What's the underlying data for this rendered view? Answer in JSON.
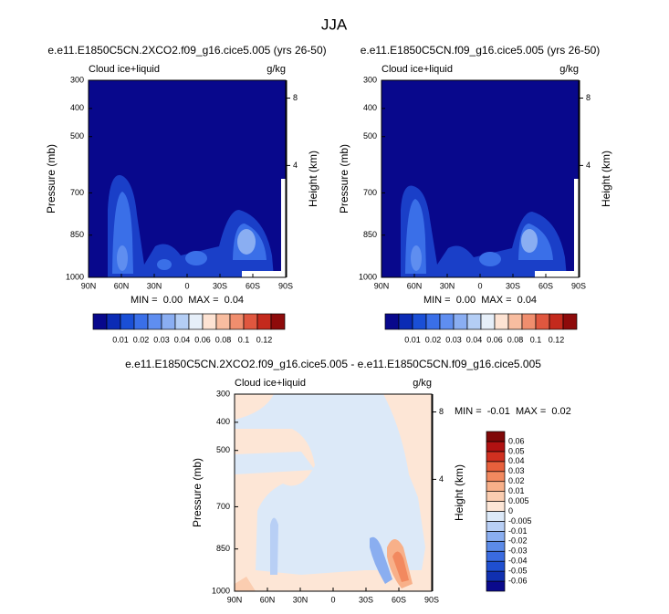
{
  "title": "JJA",
  "chart_data": [
    {
      "type": "contour",
      "title": "e.e11.E1850C5CN.2XCO2.f09_g16.cice5.005 (yrs 26-50)",
      "left_string": "Cloud ice+liquid",
      "right_string": "g/kg",
      "ylabel": "Pressure (mb)",
      "y2label": "Height (km)",
      "xlim": [
        90,
        -90
      ],
      "xticks": [
        {
          "value": 90,
          "label": "90N"
        },
        {
          "value": 60,
          "label": "60N"
        },
        {
          "value": 30,
          "label": "30N"
        },
        0,
        {
          "value": -30,
          "label": "30S"
        },
        {
          "value": -60,
          "label": "60S"
        },
        {
          "value": -90,
          "label": "90S"
        }
      ],
      "ylim": [
        1000,
        300
      ],
      "yticks": [
        300,
        400,
        500,
        700,
        850,
        1000
      ],
      "y2ticks": [
        8,
        4
      ],
      "stats": "MIN =  0.00  MAX =  0.04",
      "colorbar": {
        "orientation": "horizontal",
        "colors": [
          "#08088c",
          "#0b2bb5",
          "#1a4fd6",
          "#3a6fe8",
          "#5f8ef0",
          "#8aaef2",
          "#b4cef5",
          "#e6eff9",
          "#fde3d3",
          "#f8bda0",
          "#f08e6e",
          "#e0573f",
          "#c42a1d",
          "#8e0b0b"
        ],
        "labels": [
          0.01,
          0.02,
          0.03,
          0.04,
          0.06,
          0.08,
          0.1,
          0.12
        ]
      }
    },
    {
      "type": "contour",
      "title": "e.e11.E1850C5CN.f09_g16.cice5.005 (yrs 26-50)",
      "left_string": "Cloud ice+liquid",
      "right_string": "g/kg",
      "ylabel": "Pressure (mb)",
      "y2label": "Height (km)",
      "xlim": [
        90,
        -90
      ],
      "xticks": [
        {
          "value": 90,
          "label": "90N"
        },
        {
          "value": 60,
          "label": "60N"
        },
        {
          "value": 30,
          "label": "30N"
        },
        0,
        {
          "value": -30,
          "label": "30S"
        },
        {
          "value": -60,
          "label": "60S"
        },
        {
          "value": -90,
          "label": "90S"
        }
      ],
      "ylim": [
        1000,
        300
      ],
      "yticks": [
        300,
        400,
        500,
        700,
        850,
        1000
      ],
      "y2ticks": [
        8,
        4
      ],
      "stats": "MIN =  0.00  MAX =  0.04",
      "colorbar": {
        "orientation": "horizontal",
        "colors": [
          "#08088c",
          "#0b2bb5",
          "#1a4fd6",
          "#3a6fe8",
          "#5f8ef0",
          "#8aaef2",
          "#b4cef5",
          "#e6eff9",
          "#fde3d3",
          "#f8bda0",
          "#f08e6e",
          "#e0573f",
          "#c42a1d",
          "#8e0b0b"
        ],
        "labels": [
          0.01,
          0.02,
          0.03,
          0.04,
          0.06,
          0.08,
          0.1,
          0.12
        ]
      }
    },
    {
      "type": "contour",
      "title": "e.e11.E1850C5CN.2XCO2.f09_g16.cice5.005 - e.e11.E1850C5CN.f09_g16.cice5.005",
      "left_string": "Cloud ice+liquid",
      "right_string": "g/kg",
      "ylabel": "Pressure (mb)",
      "y2label": "Height (km)",
      "xlim": [
        90,
        -90
      ],
      "xticks": [
        {
          "value": 90,
          "label": "90N"
        },
        {
          "value": 60,
          "label": "60N"
        },
        {
          "value": 30,
          "label": "30N"
        },
        0,
        {
          "value": -30,
          "label": "30S"
        },
        {
          "value": -60,
          "label": "60S"
        },
        {
          "value": -90,
          "label": "90S"
        }
      ],
      "ylim": [
        1000,
        300
      ],
      "yticks": [
        300,
        400,
        500,
        700,
        850,
        1000
      ],
      "y2ticks": [
        8,
        4
      ],
      "stats": "MIN =  -0.01  MAX =  0.02",
      "colorbar": {
        "orientation": "vertical",
        "colors": [
          "#0a0a8c",
          "#1030b0",
          "#1f4fd0",
          "#3a6be0",
          "#5c8be8",
          "#8aaef0",
          "#b8cff5",
          "#dce9f8",
          "#fde6d6",
          "#fbcdb0",
          "#f8b089",
          "#f2895f",
          "#e8603c",
          "#d03020",
          "#b01212",
          "#800808"
        ],
        "labels": [
          -0.06,
          -0.05,
          -0.04,
          -0.03,
          -0.02,
          -0.01,
          -0.005,
          0,
          0.005,
          0.01,
          0.02,
          0.03,
          0.04,
          0.05,
          0.06
        ]
      }
    }
  ]
}
